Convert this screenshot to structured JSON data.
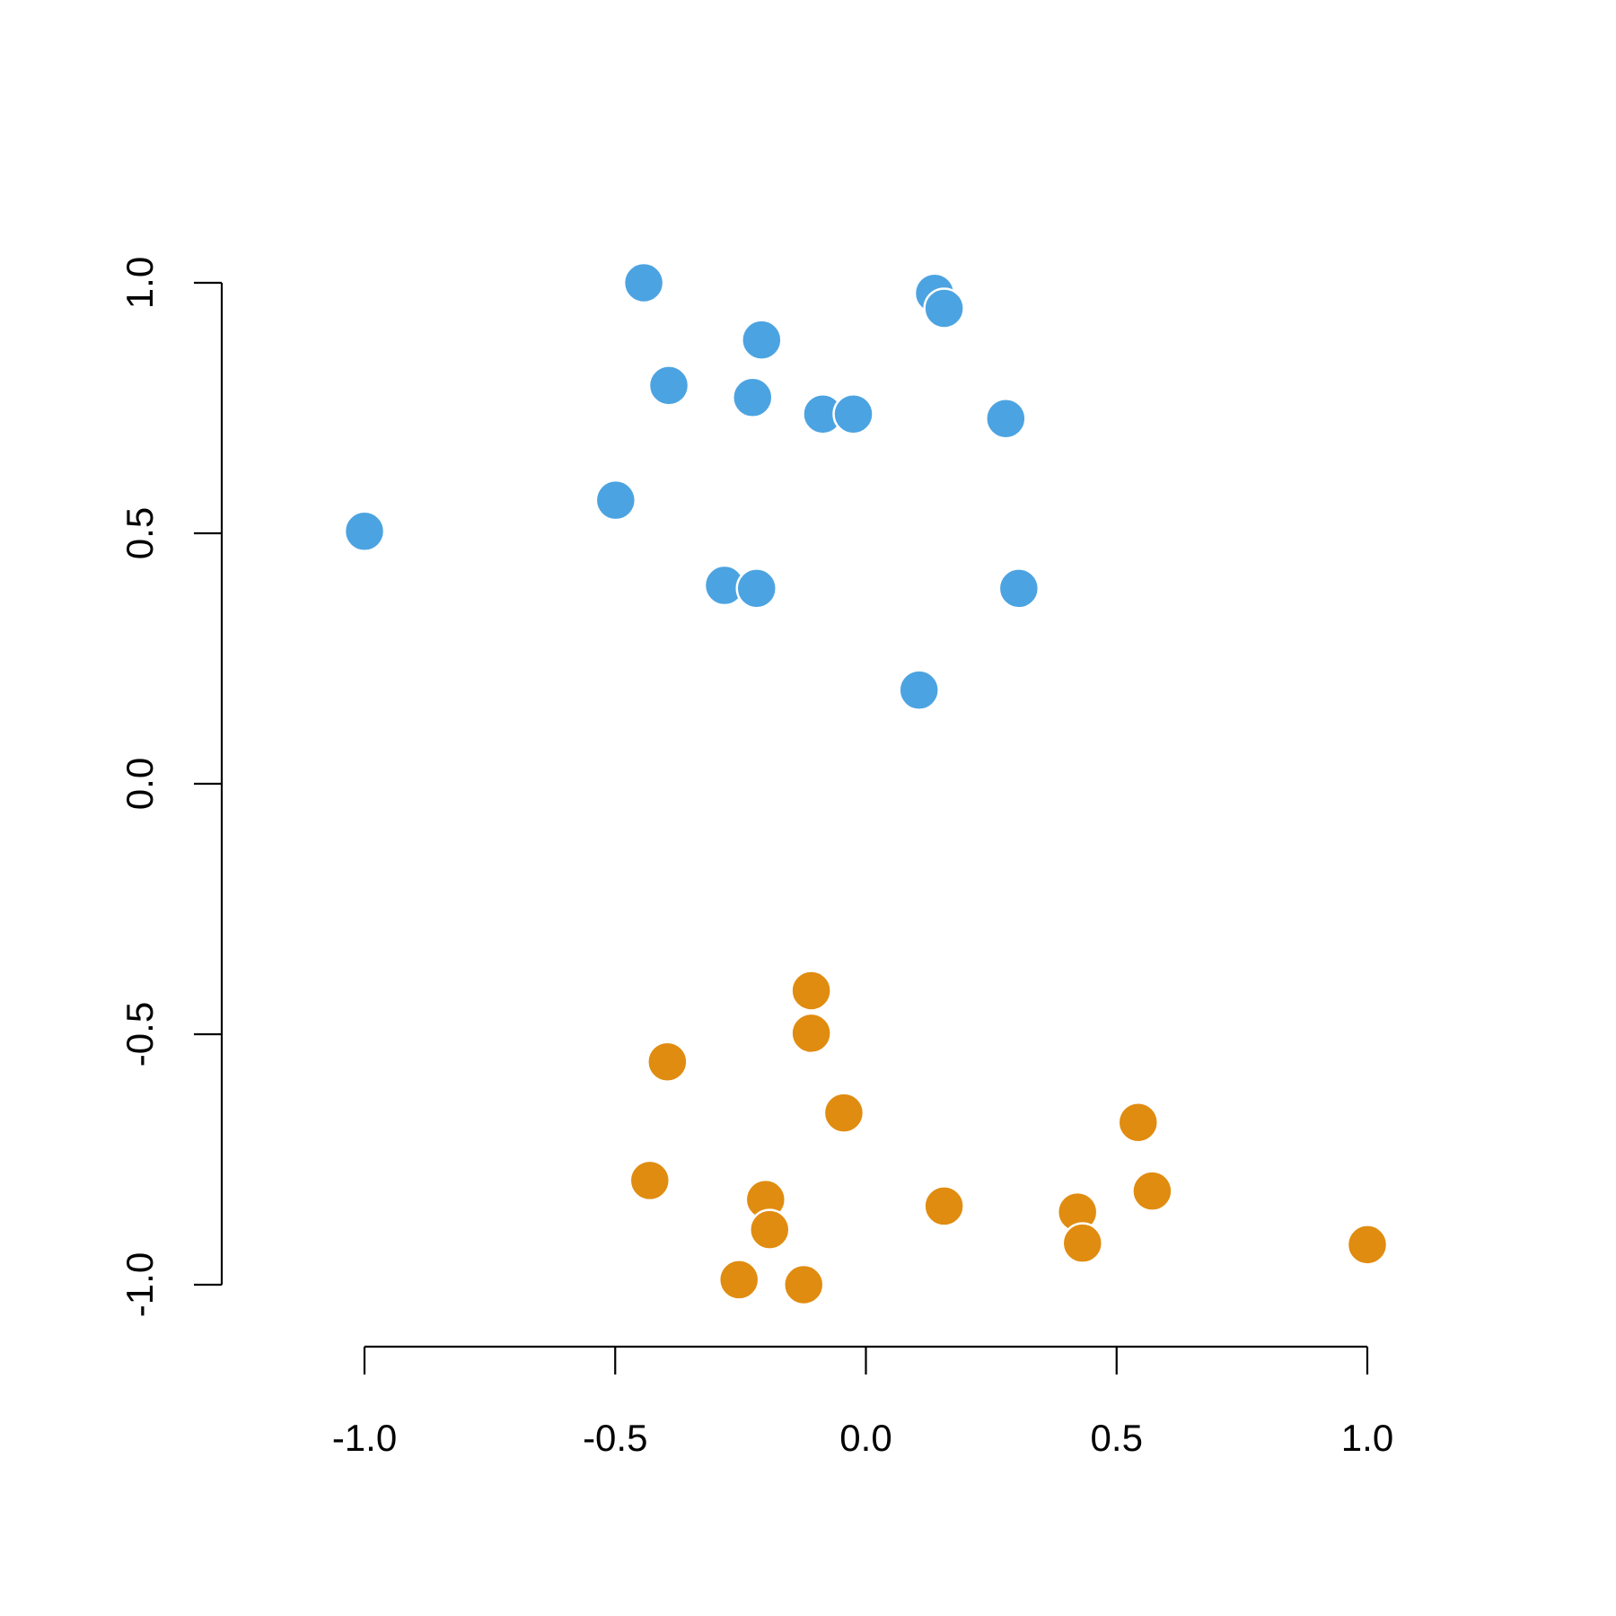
{
  "chart_data": {
    "type": "scatter",
    "title": "",
    "xlabel": "",
    "ylabel": "",
    "xlim": [
      -1.0,
      1.0
    ],
    "ylim": [
      -1.0,
      1.0
    ],
    "x_ticks": [
      "-1.0",
      "-0.5",
      "0.0",
      "0.5",
      "1.0"
    ],
    "y_ticks": [
      "-1.0",
      "-0.5",
      "0.0",
      "0.5",
      "1.0"
    ],
    "grid": false,
    "legend": "none",
    "series": [
      {
        "color": "#4ca3e1",
        "points": [
          {
            "x": -0.443,
            "y": 1.0
          },
          {
            "x": 0.137,
            "y": 0.979
          },
          {
            "x": 0.156,
            "y": 0.949
          },
          {
            "x": -0.208,
            "y": 0.886
          },
          {
            "x": -0.393,
            "y": 0.795
          },
          {
            "x": -0.226,
            "y": 0.771
          },
          {
            "x": -0.086,
            "y": 0.738
          },
          {
            "x": -0.025,
            "y": 0.738
          },
          {
            "x": 0.279,
            "y": 0.729
          },
          {
            "x": -0.499,
            "y": 0.566
          },
          {
            "x": -1.0,
            "y": 0.504
          },
          {
            "x": -0.282,
            "y": 0.396
          },
          {
            "x": -0.218,
            "y": 0.39
          },
          {
            "x": 0.305,
            "y": 0.39
          },
          {
            "x": 0.106,
            "y": 0.187
          }
        ]
      },
      {
        "color": "#e08c10",
        "points": [
          {
            "x": -0.109,
            "y": -0.413
          },
          {
            "x": -0.109,
            "y": -0.498
          },
          {
            "x": -0.396,
            "y": -0.555
          },
          {
            "x": -0.044,
            "y": -0.657
          },
          {
            "x": 0.543,
            "y": -0.676
          },
          {
            "x": -0.431,
            "y": -0.792
          },
          {
            "x": 0.571,
            "y": -0.813
          },
          {
            "x": -0.2,
            "y": -0.83
          },
          {
            "x": 0.156,
            "y": -0.843
          },
          {
            "x": 0.422,
            "y": -0.855
          },
          {
            "x": -0.192,
            "y": -0.89
          },
          {
            "x": 0.432,
            "y": -0.917
          },
          {
            "x": 1.0,
            "y": -0.92
          },
          {
            "x": -0.253,
            "y": -0.99
          },
          {
            "x": -0.124,
            "y": -1.0
          }
        ]
      }
    ]
  }
}
